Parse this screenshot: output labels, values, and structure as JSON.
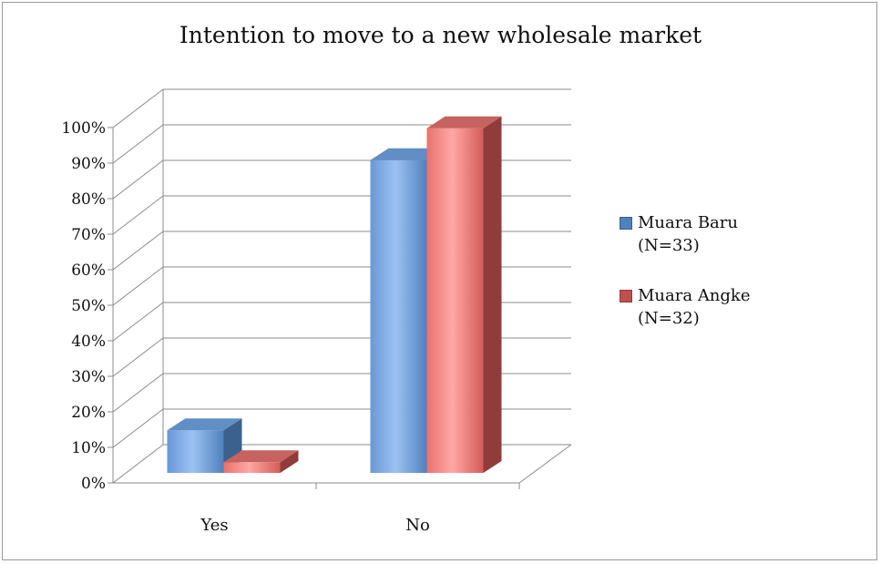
{
  "chart_data": {
    "type": "bar",
    "title": "Intention to move to a new wholesale market",
    "xlabel": "",
    "ylabel": "",
    "categories": [
      "Yes",
      "No"
    ],
    "series": [
      {
        "name": "Muara Baru\n(N=33)",
        "values": [
          12,
          88
        ],
        "color": "#4f81bd"
      },
      {
        "name": "Muara Angke\n(N=32)",
        "values": [
          3,
          97
        ],
        "color": "#c0504d"
      }
    ],
    "ylim": [
      0,
      100
    ],
    "yticks": [
      "0%",
      "10%",
      "20%",
      "30%",
      "40%",
      "50%",
      "60%",
      "70%",
      "80%",
      "90%",
      "100%"
    ],
    "y_tick_values": [
      0,
      10,
      20,
      30,
      40,
      50,
      60,
      70,
      80,
      90,
      100
    ],
    "grid": true,
    "legend_position": "right",
    "style": "3d-clustered-column"
  }
}
